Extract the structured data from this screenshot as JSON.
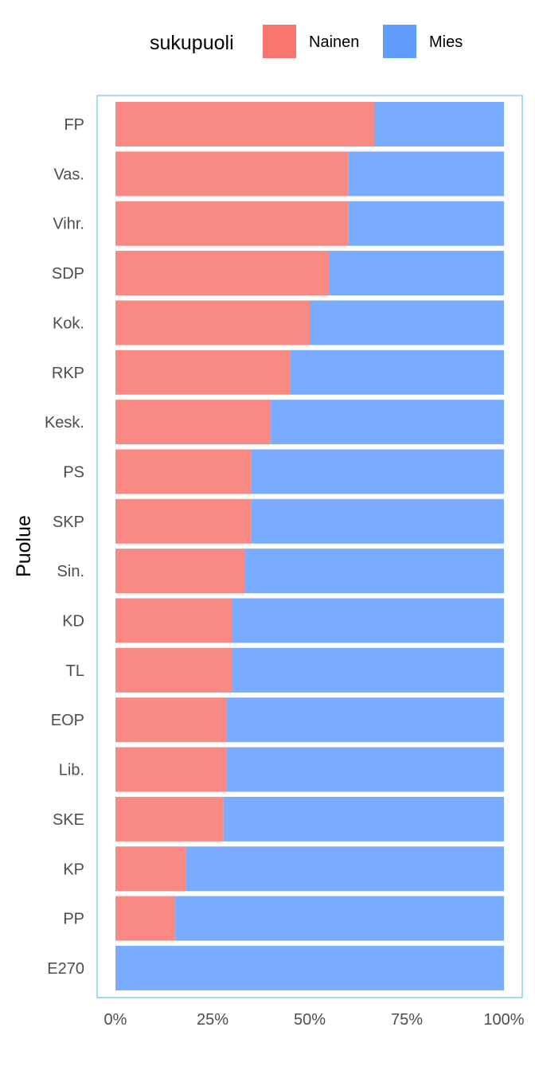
{
  "chart_data": {
    "type": "bar",
    "orientation": "horizontal",
    "stacked": true,
    "normalized": true,
    "ylabel": "Puolue",
    "xlabel": "",
    "legend": {
      "title": "sukupuoli",
      "position": "top",
      "items": [
        {
          "label": "Nainen",
          "color": "#F8766D"
        },
        {
          "label": "Mies",
          "color": "#619CFF"
        }
      ]
    },
    "x_ticks": [
      "0%",
      "25%",
      "50%",
      "75%",
      "100%"
    ],
    "xlim": [
      0,
      1
    ],
    "grid": false,
    "panel_border_color": "#87CEEB",
    "categories": [
      "FP",
      "Vas.",
      "Vihr.",
      "SDP",
      "Kok.",
      "RKP",
      "Kesk.",
      "PS",
      "SKP",
      "Sin.",
      "KD",
      "TL",
      "EOP",
      "Lib.",
      "SKE",
      "KP",
      "PP",
      "E270"
    ],
    "series": [
      {
        "name": "Nainen",
        "color": "#F8766D",
        "values": [
          0.667,
          0.6,
          0.6,
          0.55,
          0.5,
          0.45,
          0.4,
          0.35,
          0.35,
          0.333,
          0.3,
          0.3,
          0.286,
          0.286,
          0.278,
          0.182,
          0.154,
          0.0
        ]
      },
      {
        "name": "Mies",
        "color": "#619CFF",
        "values": [
          0.333,
          0.4,
          0.4,
          0.45,
          0.5,
          0.55,
          0.6,
          0.65,
          0.65,
          0.667,
          0.7,
          0.7,
          0.714,
          0.714,
          0.722,
          0.818,
          0.846,
          1.0
        ]
      }
    ]
  }
}
